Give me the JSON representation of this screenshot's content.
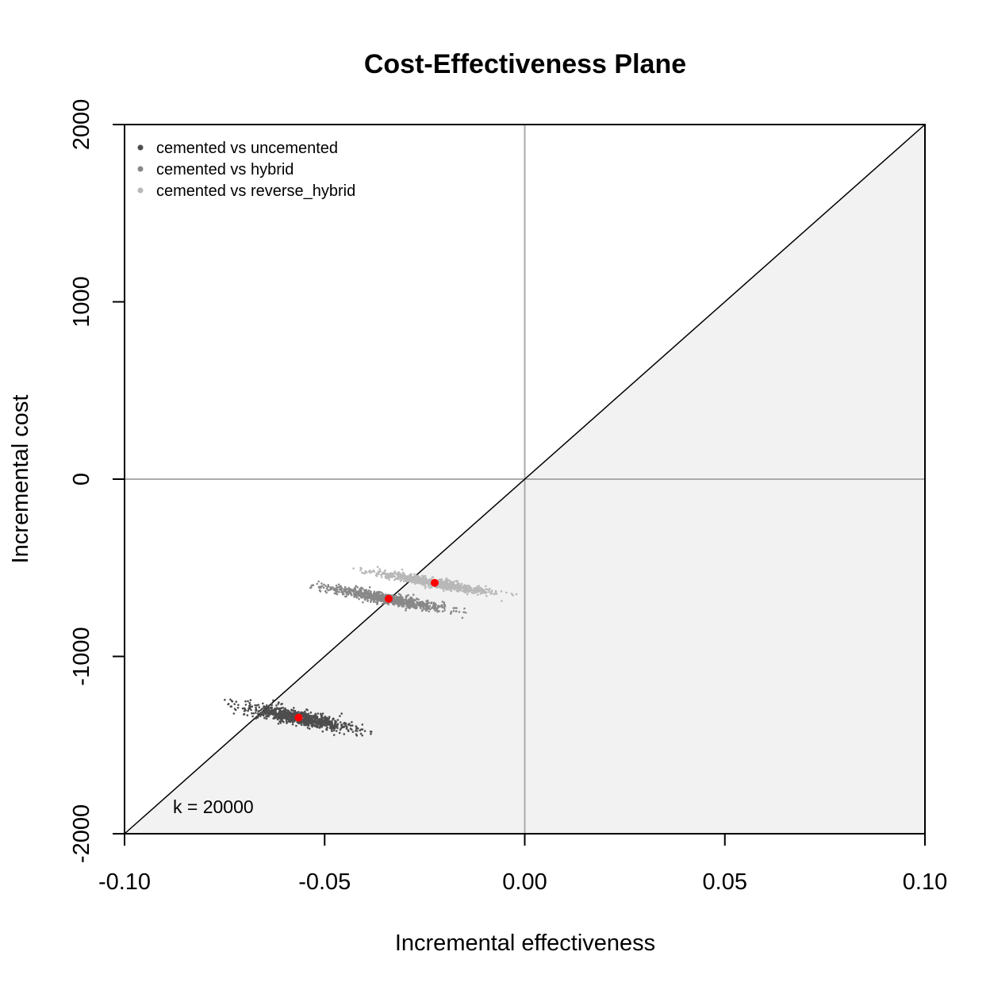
{
  "chart_data": {
    "type": "scatter",
    "title": "Cost-Effectiveness Plane",
    "xlabel": "Incremental effectiveness",
    "ylabel": "Incremental cost",
    "xlim": [
      -0.1,
      0.1
    ],
    "ylim": [
      -2000,
      2000
    ],
    "x_ticks": [
      -0.1,
      -0.05,
      0.0,
      0.05,
      0.1
    ],
    "x_tick_labels": [
      "-0.10",
      "-0.05",
      "0.00",
      "0.05",
      "0.10"
    ],
    "y_ticks": [
      -2000,
      -1000,
      0,
      1000,
      2000
    ],
    "y_tick_labels": [
      "-2000",
      "-1000",
      "0",
      "1000",
      "2000"
    ],
    "willingness_to_pay": 20000,
    "annotation": "k = 20000",
    "legend_position": "top-left",
    "point_color": "#ff0000",
    "shaded_region_color": "#f2f2f2",
    "series": [
      {
        "name": "cemented vs uncemented",
        "color": "#4d4d4d",
        "mean": [
          -0.0565,
          -1345
        ],
        "cloud": {
          "x_range": [
            -0.075,
            -0.036
          ],
          "slope": -4300,
          "spread": 20
        }
      },
      {
        "name": "cemented vs hybrid",
        "color": "#888888",
        "mean": [
          -0.034,
          -675
        ],
        "cloud": {
          "x_range": [
            -0.054,
            -0.01
          ],
          "slope": -4000,
          "spread": 15
        }
      },
      {
        "name": "cemented vs reverse_hybrid",
        "color": "#b8b8b8",
        "mean": [
          -0.0225,
          -585
        ],
        "cloud": {
          "x_range": [
            -0.043,
            -0.001
          ],
          "slope": -3900,
          "spread": 12
        }
      }
    ]
  }
}
